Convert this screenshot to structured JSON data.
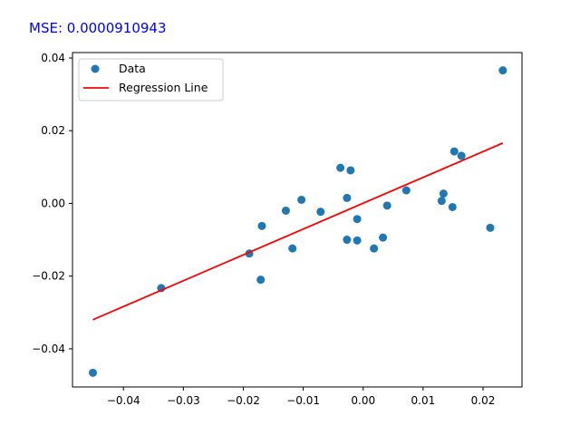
{
  "annotation": {
    "text": "MSE: 0.0000910943",
    "color": "#0000ff"
  },
  "chart_data": {
    "type": "scatter",
    "xlim": [
      -0.0485,
      0.0265
    ],
    "ylim": [
      -0.0505,
      0.0415
    ],
    "xticks": [
      -0.04,
      -0.03,
      -0.02,
      -0.01,
      0.0,
      0.01,
      0.02
    ],
    "xtick_labels": [
      "−0.04",
      "−0.03",
      "−0.02",
      "−0.01",
      "0.00",
      "0.01",
      "0.02"
    ],
    "yticks": [
      -0.04,
      -0.02,
      0.0,
      0.02,
      0.04
    ],
    "ytick_labels": [
      "−0.04",
      "−0.02",
      "0.00",
      "0.02",
      "0.04"
    ],
    "grid": false,
    "legend_position": "top-left",
    "series": [
      {
        "name": "Data",
        "kind": "scatter",
        "color": "#1f77b4",
        "points": [
          [
            -0.0451,
            -0.0466
          ],
          [
            -0.0337,
            -0.0233
          ],
          [
            -0.019,
            -0.0138
          ],
          [
            -0.0171,
            -0.021
          ],
          [
            -0.0169,
            -0.0062
          ],
          [
            -0.0129,
            -0.002
          ],
          [
            -0.0118,
            -0.0124
          ],
          [
            -0.0103,
            0.001
          ],
          [
            -0.0071,
            -0.0023
          ],
          [
            -0.0038,
            0.0098
          ],
          [
            -0.0027,
            0.0015
          ],
          [
            -0.0027,
            -0.01
          ],
          [
            -0.0021,
            0.0091
          ],
          [
            -0.001,
            -0.0043
          ],
          [
            -0.001,
            -0.0102
          ],
          [
            0.0018,
            -0.0124
          ],
          [
            0.0033,
            -0.0094
          ],
          [
            0.004,
            -0.0006
          ],
          [
            0.0072,
            0.0036
          ],
          [
            0.0131,
            0.0007
          ],
          [
            0.0134,
            0.0027
          ],
          [
            0.0149,
            -0.001
          ],
          [
            0.0152,
            0.0143
          ],
          [
            0.0164,
            0.0131
          ],
          [
            0.0212,
            -0.0067
          ],
          [
            0.0233,
            0.0366
          ]
        ]
      },
      {
        "name": "Regression Line",
        "kind": "line",
        "color": "#ff0000",
        "points": [
          [
            -0.0451,
            -0.032
          ],
          [
            0.0233,
            0.0166
          ]
        ]
      }
    ]
  }
}
